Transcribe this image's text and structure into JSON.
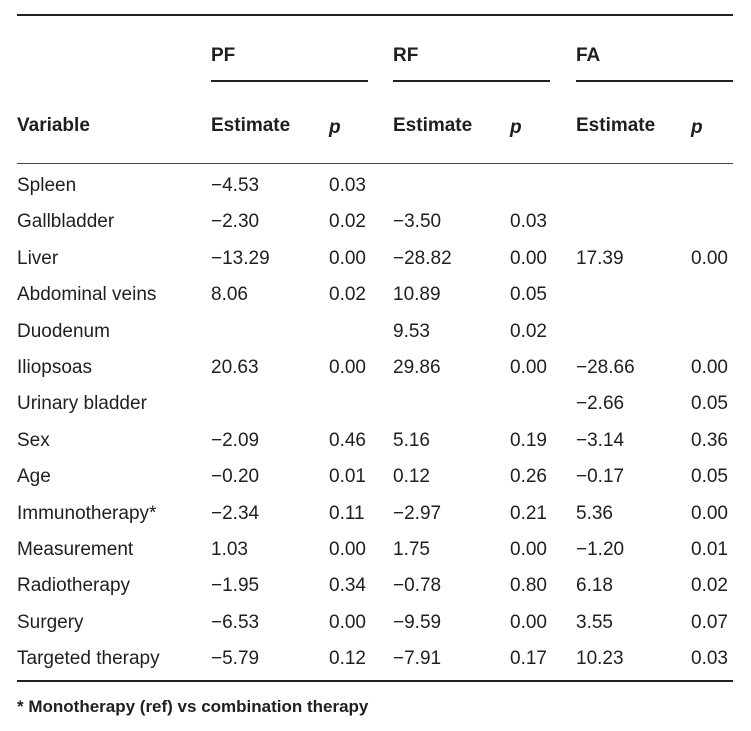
{
  "groups": [
    "PF",
    "RF",
    "FA"
  ],
  "columns": {
    "variable": "Variable",
    "estimate": "Estimate",
    "p": "p"
  },
  "rows": [
    {
      "variable": "Spleen",
      "pf_est": "−4.53",
      "pf_p": "0.03",
      "rf_est": "",
      "rf_p": "",
      "fa_est": "",
      "fa_p": ""
    },
    {
      "variable": "Gallbladder",
      "pf_est": "−2.30",
      "pf_p": "0.02",
      "rf_est": "−3.50",
      "rf_p": "0.03",
      "fa_est": "",
      "fa_p": ""
    },
    {
      "variable": "Liver",
      "pf_est": "−13.29",
      "pf_p": "0.00",
      "rf_est": "−28.82",
      "rf_p": "0.00",
      "fa_est": "17.39",
      "fa_p": "0.00"
    },
    {
      "variable": "Abdominal veins",
      "pf_est": "8.06",
      "pf_p": "0.02",
      "rf_est": "10.89",
      "rf_p": "0.05",
      "fa_est": "",
      "fa_p": ""
    },
    {
      "variable": "Duodenum",
      "pf_est": "",
      "pf_p": "",
      "rf_est": "9.53",
      "rf_p": "0.02",
      "fa_est": "",
      "fa_p": ""
    },
    {
      "variable": "Iliopsoas",
      "pf_est": "20.63",
      "pf_p": "0.00",
      "rf_est": "29.86",
      "rf_p": "0.00",
      "fa_est": "−28.66",
      "fa_p": "0.00"
    },
    {
      "variable": "Urinary bladder",
      "pf_est": "",
      "pf_p": "",
      "rf_est": "",
      "rf_p": "",
      "fa_est": "−2.66",
      "fa_p": "0.05"
    },
    {
      "variable": "Sex",
      "pf_est": "−2.09",
      "pf_p": "0.46",
      "rf_est": "5.16",
      "rf_p": "0.19",
      "fa_est": "−3.14",
      "fa_p": "0.36"
    },
    {
      "variable": "Age",
      "pf_est": "−0.20",
      "pf_p": "0.01",
      "rf_est": "0.12",
      "rf_p": "0.26",
      "fa_est": "−0.17",
      "fa_p": "0.05"
    },
    {
      "variable": "Immunotherapy*",
      "pf_est": "−2.34",
      "pf_p": "0.11",
      "rf_est": "−2.97",
      "rf_p": "0.21",
      "fa_est": "5.36",
      "fa_p": "0.00"
    },
    {
      "variable": "Measurement",
      "pf_est": "1.03",
      "pf_p": "0.00",
      "rf_est": "1.75",
      "rf_p": "0.00",
      "fa_est": "−1.20",
      "fa_p": "0.01"
    },
    {
      "variable": "Radiotherapy",
      "pf_est": "−1.95",
      "pf_p": "0.34",
      "rf_est": "−0.78",
      "rf_p": "0.80",
      "fa_est": "6.18",
      "fa_p": "0.02"
    },
    {
      "variable": "Surgery",
      "pf_est": "−6.53",
      "pf_p": "0.00",
      "rf_est": "−9.59",
      "rf_p": "0.00",
      "fa_est": "3.55",
      "fa_p": "0.07"
    },
    {
      "variable": "Targeted therapy",
      "pf_est": "−5.79",
      "pf_p": "0.12",
      "rf_est": "−7.91",
      "rf_p": "0.17",
      "fa_est": "10.23",
      "fa_p": "0.03"
    }
  ],
  "footnote": "* Monotherapy (ref) vs combination therapy"
}
